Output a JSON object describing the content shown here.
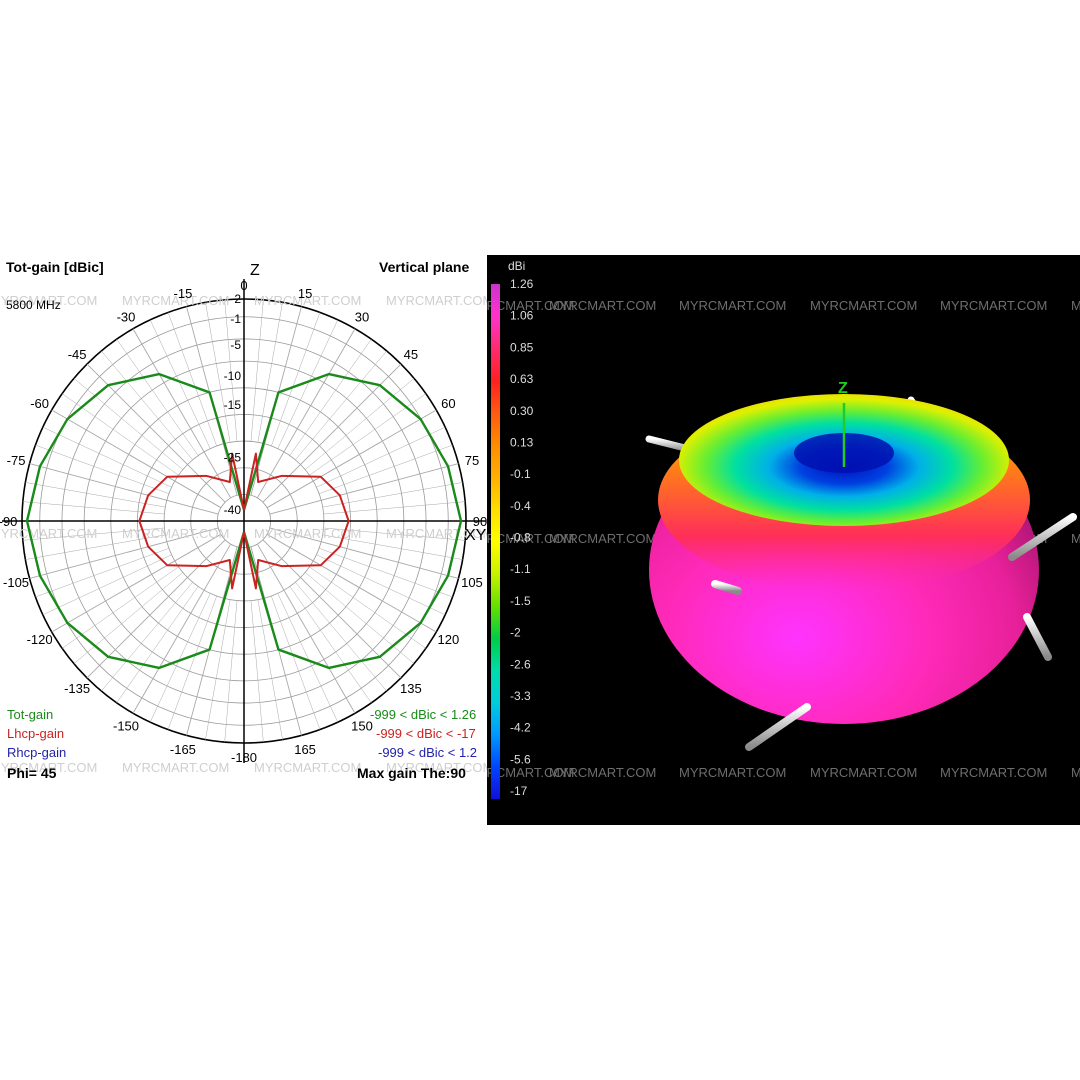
{
  "watermark": "MYRCMART.COM",
  "polar": {
    "title": "Tot-gain [dBic]",
    "plane": "Vertical plane",
    "frequency": "5800 MHz",
    "z_label": "Z",
    "xy_label": "XY",
    "phi_label": "Phi= 45",
    "max_gain_label": "Max gain The:90",
    "legend": [
      {
        "name": "Tot-gain",
        "range": "-999 < dBic < 1.26",
        "color": "#1a8a1a"
      },
      {
        "name": "Lhcp-gain",
        "range": "-999 < dBic < -17",
        "color": "#cc2222"
      },
      {
        "name": "Rhcp-gain",
        "range": "-999 < dBic < 1.2",
        "color": "#2222aa"
      }
    ],
    "angle_labels": [
      {
        "angle": 0,
        "text": "0"
      },
      {
        "angle": 15,
        "text": "15"
      },
      {
        "angle": 30,
        "text": "30"
      },
      {
        "angle": 45,
        "text": "45"
      },
      {
        "angle": 60,
        "text": "60"
      },
      {
        "angle": 75,
        "text": "75"
      },
      {
        "angle": 90,
        "text": "90"
      },
      {
        "angle": 105,
        "text": "105"
      },
      {
        "angle": 120,
        "text": "120"
      },
      {
        "angle": 135,
        "text": "135"
      },
      {
        "angle": 150,
        "text": "150"
      },
      {
        "angle": 165,
        "text": "165"
      },
      {
        "angle": 180,
        "text": "-180"
      },
      {
        "angle": -15,
        "text": "-15"
      },
      {
        "angle": -30,
        "text": "-30"
      },
      {
        "angle": -45,
        "text": "-45"
      },
      {
        "angle": -60,
        "text": "-60"
      },
      {
        "angle": -75,
        "text": "-75"
      },
      {
        "angle": -90,
        "text": "-90"
      },
      {
        "angle": -105,
        "text": "-105"
      },
      {
        "angle": -120,
        "text": "-120"
      },
      {
        "angle": -135,
        "text": "-135"
      },
      {
        "angle": -150,
        "text": "-150"
      },
      {
        "angle": -165,
        "text": "-165"
      }
    ],
    "radial_ticks": [
      "2",
      "-1",
      "-5",
      "-10",
      "-15",
      "-25",
      "-40"
    ]
  },
  "chart_data": {
    "type": "polar",
    "angle_unit": "degrees",
    "radial_unit": "dBic",
    "series": [
      {
        "name": "Tot-gain",
        "max": 1.26,
        "theta": [
          0,
          15,
          30,
          45,
          60,
          75,
          90,
          105,
          120,
          135,
          150,
          165,
          180
        ],
        "gain": [
          -40,
          -12,
          -6,
          -2.5,
          -0.7,
          0.4,
          1.26,
          0.4,
          -0.7,
          -2.5,
          -6,
          -12,
          -40
        ]
      },
      {
        "name": "Lhcp-gain",
        "max": -17,
        "theta": [
          0,
          10,
          20,
          40,
          60,
          75,
          90,
          105,
          120,
          140,
          160,
          170,
          180
        ],
        "gain": [
          -40,
          -24,
          -30,
          -26,
          -20,
          -18,
          -17,
          -18,
          -20,
          -26,
          -30,
          -24,
          -40
        ]
      },
      {
        "name": "Rhcp-gain",
        "max": 1.2
      }
    ]
  },
  "colorbar": {
    "unit": "dBi",
    "ticks": [
      "1.26",
      "1.06",
      "0.85",
      "0.63",
      "0.30",
      "0.13",
      "-0.1",
      "-0.4",
      "-0.8",
      "-1.1",
      "-1.5",
      "-2",
      "-2.6",
      "-3.3",
      "-4.2",
      "-5.6",
      "-17"
    ],
    "colors": [
      "#cc33cc",
      "#ff33cc",
      "#ff2a6e",
      "#ff2020",
      "#ff5a10",
      "#ff8c00",
      "#ffb000",
      "#ffdd00",
      "#ffff00",
      "#c8f000",
      "#66e000",
      "#00cc44",
      "#00ddaa",
      "#00ccdd",
      "#0099ff",
      "#0044ff",
      "#1010dd"
    ]
  },
  "pattern3d": {
    "axis_label": "Z"
  }
}
